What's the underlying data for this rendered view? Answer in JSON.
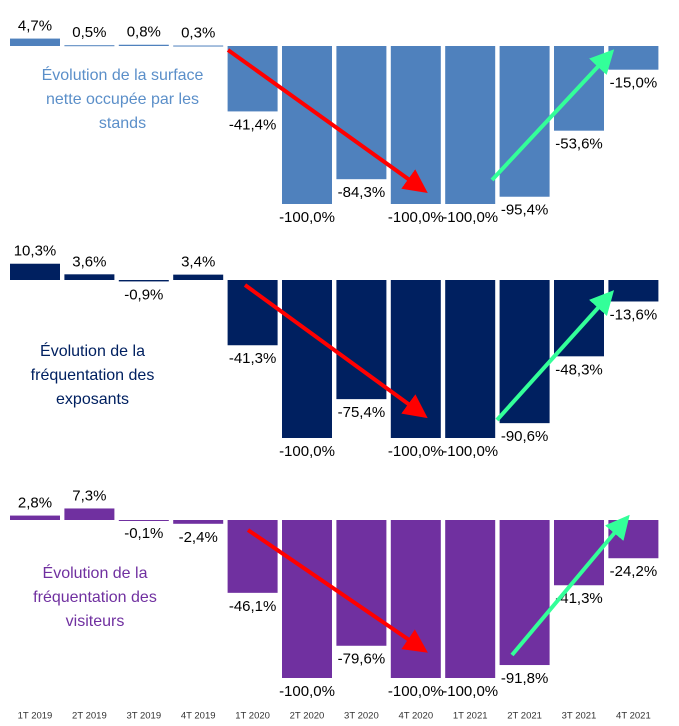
{
  "categories": [
    "1T 2019",
    "2T 2019",
    "3T 2019",
    "4T 2019",
    "1T 2020",
    "2T 2020",
    "3T 2020",
    "4T 2020",
    "1T 2021",
    "2T 2021",
    "3T 2021",
    "4T 2021"
  ],
  "chart_data": [
    {
      "type": "bar",
      "title": "Évolution de la surface nette occupée par les stands",
      "color": "#4f81bd",
      "values": [
        4.7,
        0.5,
        0.8,
        0.3,
        -41.4,
        -100.0,
        -84.3,
        -100.0,
        -100.0,
        -95.4,
        -53.6,
        -15.0
      ],
      "value_labels": [
        "4,7%",
        "0,5%",
        "0,8%",
        "0,3%",
        "-41,4%",
        "-100,0%",
        "-84,3%",
        "-100,0%",
        "-100,0%",
        "-95,4%",
        "-53,6%",
        "-15,0%"
      ]
    },
    {
      "type": "bar",
      "title": "Évolution de la fréquentation des exposants",
      "color": "#002060",
      "values": [
        10.3,
        3.6,
        -0.9,
        3.4,
        -41.3,
        -100.0,
        -75.4,
        -100.0,
        -100.0,
        -90.6,
        -48.3,
        -13.6
      ],
      "value_labels": [
        "10,3%",
        "3,6%",
        "-0,9%",
        "3,4%",
        "-41,3%",
        "-100,0%",
        "-75,4%",
        "-100,0%",
        "-100,0%",
        "-90,6%",
        "-48,3%",
        "-13,6%"
      ]
    },
    {
      "type": "bar",
      "title": "Évolution de la fréquentation des visiteurs",
      "color": "#7030a0",
      "values": [
        2.8,
        7.3,
        -0.1,
        -2.4,
        -46.1,
        -100.0,
        -79.6,
        -100.0,
        -100.0,
        -91.8,
        -41.3,
        -24.2
      ],
      "value_labels": [
        "2,8%",
        "7,3%",
        "-0,1%",
        "-2,4%",
        "-46,1%",
        "-100,0%",
        "-79,6%",
        "-100,0%",
        "-100,0%",
        "-91,8%",
        "-41,3%",
        "-24,2%"
      ]
    }
  ]
}
